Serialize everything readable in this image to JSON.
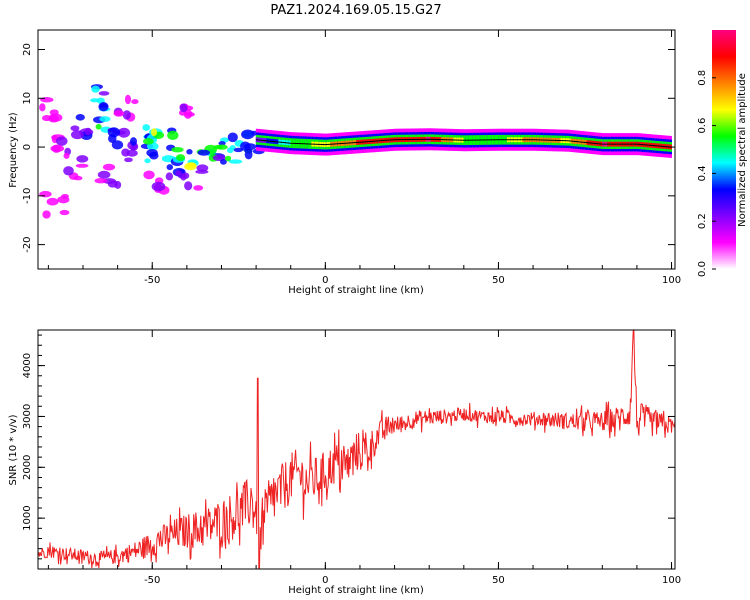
{
  "title": "PAZ1.2024.169.05.15.G27",
  "chart_data": [
    {
      "type": "heatmap",
      "xlabel": "Height of straight line (km)",
      "ylabel": "Frequency (Hz)",
      "xlim": [
        -83,
        101
      ],
      "ylim": [
        -25,
        24
      ],
      "x_ticks": [
        -50,
        0,
        50,
        100
      ],
      "y_ticks": [
        20,
        10,
        0,
        -10,
        -20
      ],
      "grid": false,
      "colorbar": {
        "label": "Normalized spectral amplitude",
        "range": [
          0,
          1
        ],
        "ticks": [
          0.0,
          0.2,
          0.4,
          0.6,
          0.8
        ],
        "colormap": [
          "#ffffff",
          "#ff00ff",
          "#8000ff",
          "#0000ff",
          "#00ffff",
          "#00ff00",
          "#ffff00",
          "#ff8000",
          "#ff0000",
          "#ff0080"
        ]
      },
      "ridge": {
        "description_color": "#000000",
        "x": [
          -20,
          -10,
          0,
          10,
          20,
          30,
          40,
          50,
          60,
          70,
          80,
          90,
          100
        ],
        "frequency": [
          1.5,
          0.8,
          0.5,
          1.0,
          1.5,
          1.6,
          1.4,
          1.5,
          1.5,
          1.3,
          0.6,
          0.6,
          0.0
        ],
        "amplitude": [
          0.2,
          0.5,
          0.7,
          0.85,
          0.9,
          0.95,
          0.6,
          0.55,
          0.8,
          0.7,
          0.95,
          0.9,
          0.9
        ]
      },
      "scatter_blobs": [
        {
          "x": -70,
          "f": 4,
          "a": 0.25
        },
        {
          "x": -66,
          "f": 10,
          "a": 0.4
        },
        {
          "x": -64,
          "f": 6,
          "a": 0.5
        },
        {
          "x": -60,
          "f": 2,
          "a": 0.3
        },
        {
          "x": -56,
          "f": -2,
          "a": 0.25
        },
        {
          "x": -53,
          "f": 3,
          "a": 0.55
        },
        {
          "x": -50,
          "f": -1,
          "a": 0.45
        },
        {
          "x": -47,
          "f": 1,
          "a": 0.6
        },
        {
          "x": -44,
          "f": -4,
          "a": 0.4
        },
        {
          "x": -40,
          "f": -3,
          "a": 0.5
        },
        {
          "x": -36,
          "f": -2,
          "a": 0.55
        },
        {
          "x": -32,
          "f": 0,
          "a": 0.45
        },
        {
          "x": -28,
          "f": -1,
          "a": 0.5
        },
        {
          "x": -24,
          "f": 0,
          "a": 0.45
        },
        {
          "x": -22,
          "f": 1,
          "a": 0.35
        },
        {
          "x": -76,
          "f": 0,
          "a": 0.2
        },
        {
          "x": -72,
          "f": -4,
          "a": 0.2
        },
        {
          "x": -62,
          "f": -6,
          "a": 0.2
        },
        {
          "x": -58,
          "f": 8,
          "a": 0.15
        },
        {
          "x": -48,
          "f": -8,
          "a": 0.2
        },
        {
          "x": -42,
          "f": 6,
          "a": 0.15
        },
        {
          "x": -80,
          "f": 8,
          "a": 0.1
        },
        {
          "x": -78,
          "f": -12,
          "a": 0.1
        },
        {
          "x": -38,
          "f": -6,
          "a": 0.2
        }
      ]
    },
    {
      "type": "line",
      "xlabel": "Height of straight line (km)",
      "ylabel": "SNR (10 * v/v)",
      "xlim": [
        -83,
        101
      ],
      "ylim": [
        0,
        4700
      ],
      "x_ticks": [
        -50,
        0,
        50,
        100
      ],
      "y_ticks": [
        1000,
        2000,
        3000,
        4000
      ],
      "grid": false,
      "series": [
        {
          "color": "#ee2222",
          "x": [
            -83,
            -80,
            -75,
            -70,
            -65,
            -60,
            -55,
            -50,
            -45,
            -40,
            -35,
            -30,
            -25,
            -22,
            -20,
            -19,
            -18,
            -17,
            -15,
            -12,
            -10,
            -8,
            -5,
            -2,
            0,
            3,
            6,
            9,
            12,
            15,
            18,
            22,
            26,
            30,
            35,
            40,
            45,
            50,
            55,
            60,
            65,
            70,
            75,
            80,
            85,
            88,
            89,
            90,
            92,
            95,
            98,
            101
          ],
          "y": [
            300,
            350,
            300,
            250,
            200,
            250,
            350,
            500,
            650,
            750,
            800,
            950,
            1100,
            1300,
            1200,
            200,
            900,
            1100,
            1400,
            1600,
            1800,
            1900,
            1700,
            1800,
            1900,
            2100,
            2000,
            2300,
            2300,
            2600,
            2800,
            2850,
            2950,
            2980,
            3000,
            3050,
            3000,
            3000,
            2950,
            2950,
            2950,
            2900,
            2900,
            2900,
            2950,
            3100,
            4500,
            2900,
            2950,
            2850,
            2850,
            2800
          ]
        }
      ],
      "noise_amplitude": [
        {
          "x": -83,
          "amp": 120
        },
        {
          "x": -60,
          "amp": 150
        },
        {
          "x": -40,
          "amp": 350
        },
        {
          "x": -25,
          "amp": 500
        },
        {
          "x": -18,
          "amp": 550
        },
        {
          "x": -5,
          "amp": 450
        },
        {
          "x": 10,
          "amp": 400
        },
        {
          "x": 20,
          "amp": 180
        },
        {
          "x": 40,
          "amp": 130
        },
        {
          "x": 60,
          "amp": 140
        },
        {
          "x": 80,
          "amp": 200
        },
        {
          "x": 90,
          "amp": 350
        },
        {
          "x": 101,
          "amp": 150
        }
      ]
    }
  ]
}
